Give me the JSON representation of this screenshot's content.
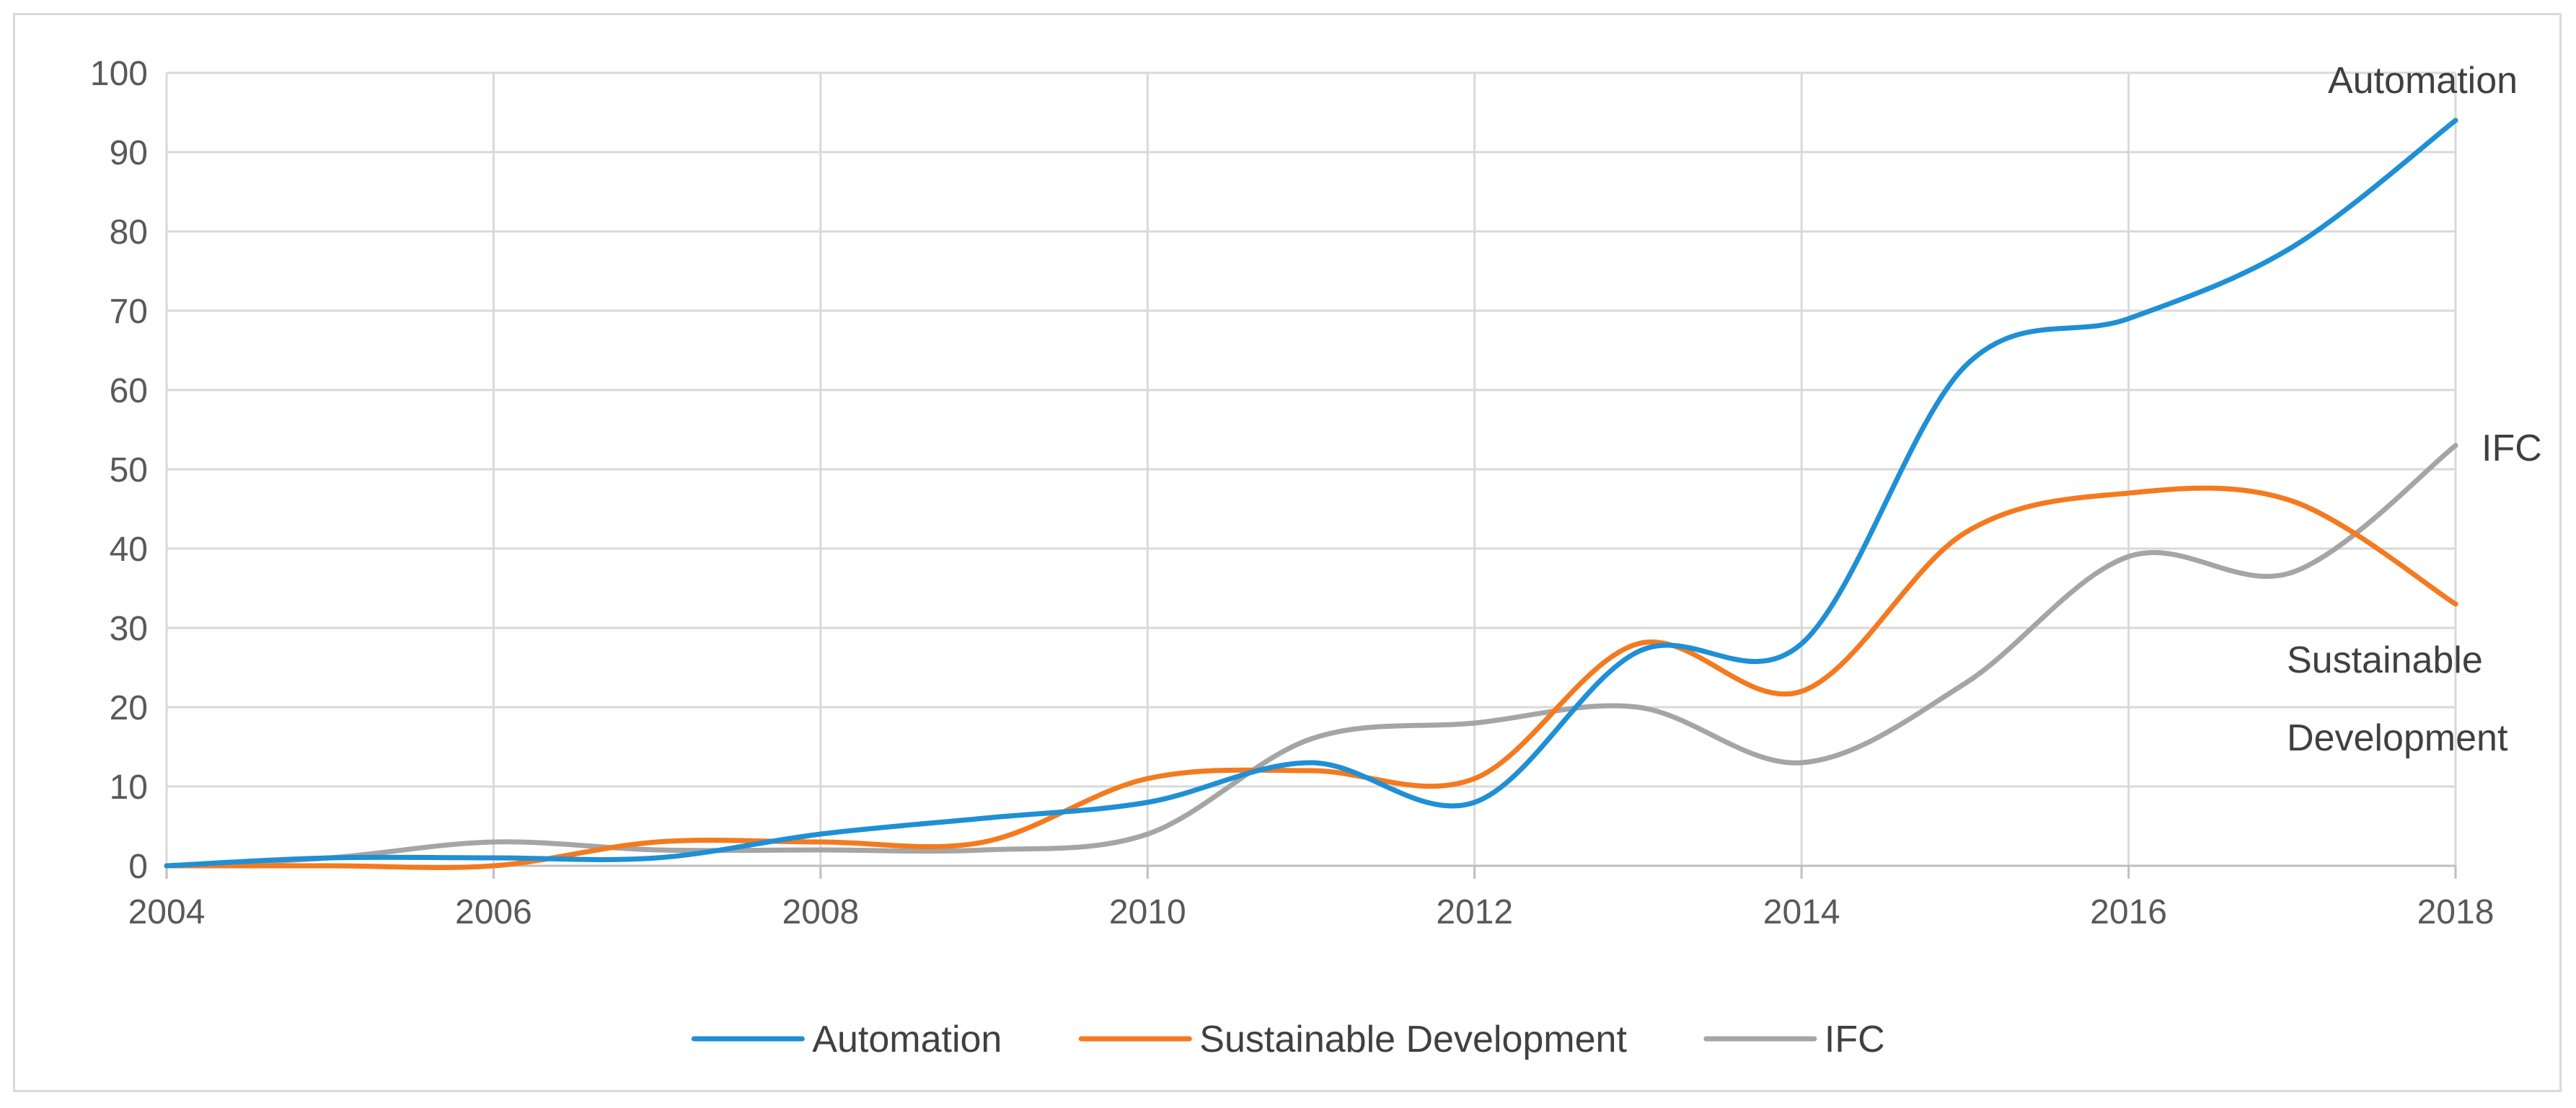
{
  "chart_data": {
    "type": "line",
    "title": "",
    "xlabel": "",
    "ylabel": "",
    "x": [
      2004,
      2005,
      2006,
      2007,
      2008,
      2009,
      2010,
      2011,
      2012,
      2013,
      2014,
      2015,
      2016,
      2017,
      2018
    ],
    "x_ticks": [
      "2004",
      "2006",
      "2008",
      "2010",
      "2012",
      "2014",
      "2016",
      "2018"
    ],
    "x_tick_values": [
      2004,
      2006,
      2008,
      2010,
      2012,
      2014,
      2016,
      2018
    ],
    "xlim": [
      2004,
      2018
    ],
    "ylim": [
      0,
      100
    ],
    "y_ticks": [
      "0",
      "10",
      "20",
      "30",
      "40",
      "50",
      "60",
      "70",
      "80",
      "90",
      "100"
    ],
    "y_tick_values": [
      0,
      10,
      20,
      30,
      40,
      50,
      60,
      70,
      80,
      90,
      100
    ],
    "grid": true,
    "smooth": true,
    "legend_position": "bottom",
    "series": [
      {
        "name": "Automation",
        "color": "#1f8fd6",
        "end_label": [
          "Automation"
        ],
        "values": [
          0,
          1,
          1,
          1,
          4,
          6,
          8,
          13,
          8,
          27,
          28,
          63,
          69,
          78,
          94
        ]
      },
      {
        "name": "Sustainable Development",
        "color": "#f47a1f",
        "end_label": [
          "Sustainable",
          "Development"
        ],
        "values": [
          0,
          0,
          0,
          3,
          3,
          3,
          11,
          12,
          11,
          28,
          22,
          42,
          47,
          46,
          33
        ]
      },
      {
        "name": "IFC",
        "color": "#a5a5a5",
        "end_label": [
          "IFC"
        ],
        "values": [
          0,
          1,
          3,
          2,
          2,
          2,
          4,
          16,
          18,
          20,
          13,
          23,
          39,
          37,
          53
        ]
      }
    ]
  }
}
